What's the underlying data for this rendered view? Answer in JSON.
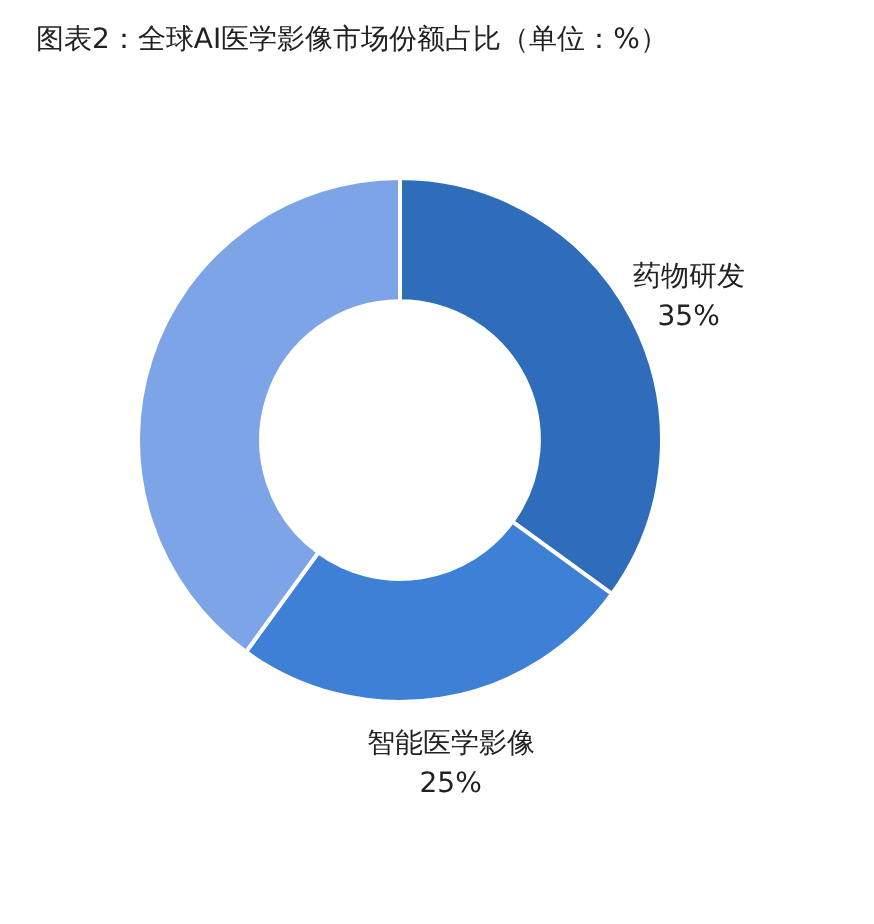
{
  "chart_data": {
    "type": "donut",
    "title": "图表2：全球AI医学影像市场份额占比（单位：%）",
    "categories": [
      "药物研发",
      "智能医学影像",
      null
    ],
    "values": [
      35,
      25,
      40
    ],
    "colors": [
      "#2f6cb9",
      "#3d80d6",
      "#7ca4e6"
    ],
    "value_labels": [
      "35%",
      "25%",
      null
    ]
  }
}
